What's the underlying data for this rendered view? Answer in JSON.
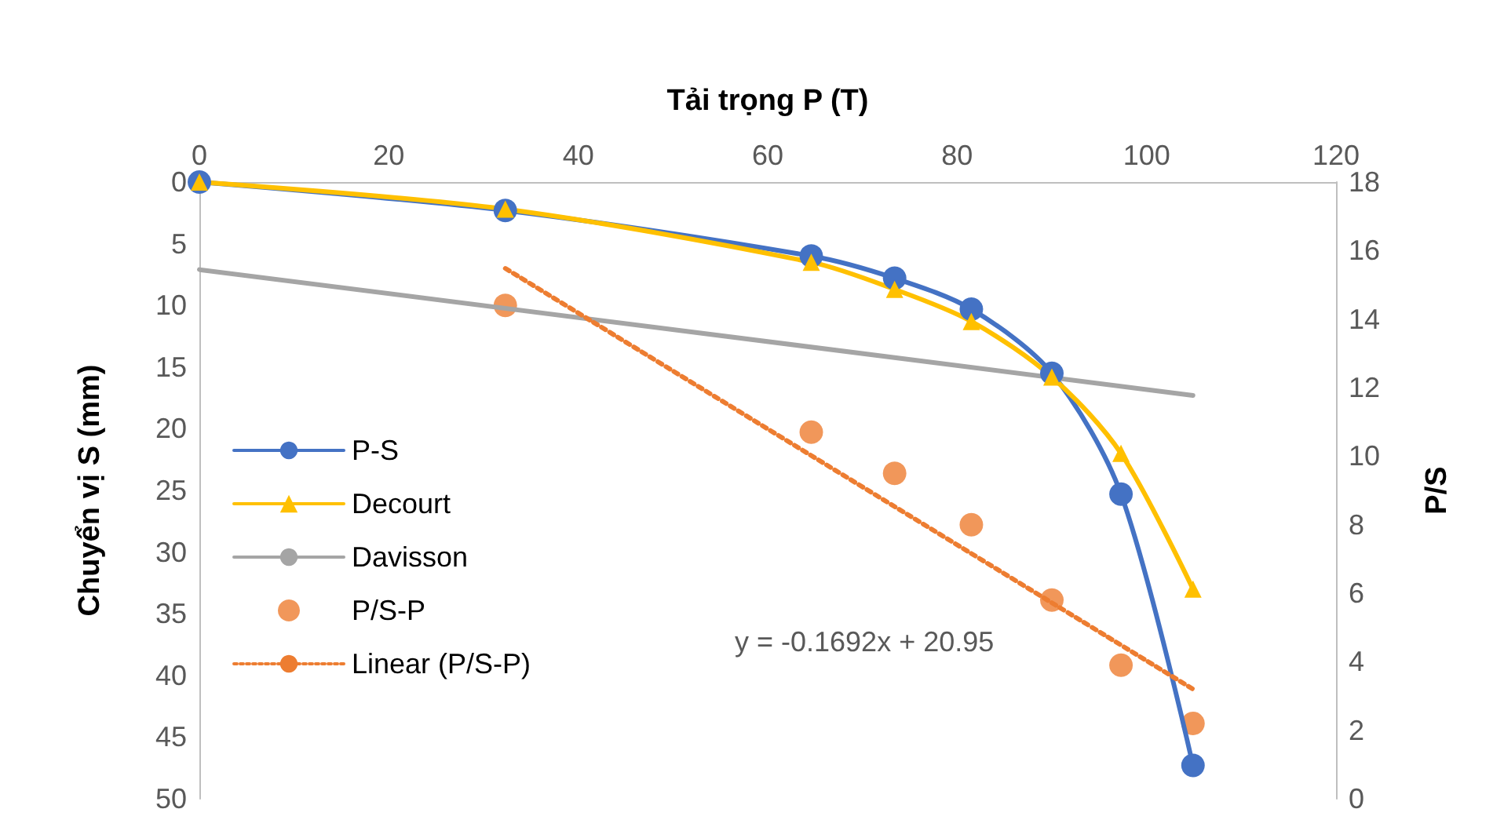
{
  "chart_data": {
    "type": "line",
    "xlabel": "Tải trọng P (T)",
    "ylabel": "Chuyển vị S (mm)",
    "y2label": "P/S",
    "xlim": [
      0,
      120
    ],
    "xticks": [
      0,
      20,
      40,
      60,
      80,
      100,
      120
    ],
    "ylim": [
      50,
      0
    ],
    "yticks": [
      0,
      5,
      10,
      15,
      20,
      25,
      30,
      35,
      40,
      45,
      50
    ],
    "y2lim": [
      0,
      18
    ],
    "y2ticks": [
      0,
      2,
      4,
      6,
      8,
      10,
      12,
      14,
      16,
      18
    ],
    "series": [
      {
        "name": "P-S",
        "color": "#4472c4",
        "marker": "circle",
        "x": [
          0,
          32.3,
          64.6,
          73.4,
          81.5,
          90,
          97.3,
          104.9
        ],
        "values": [
          0,
          2.3,
          6.0,
          7.8,
          10.3,
          15.5,
          25.3,
          47.3
        ]
      },
      {
        "name": "Decourt",
        "color": "#ffc000",
        "marker": "triangle",
        "x": [
          0,
          32.3,
          64.6,
          73.4,
          81.5,
          90,
          97.3,
          104.9
        ],
        "values": [
          0,
          2.2,
          6.5,
          8.7,
          11.3,
          15.8,
          22,
          33
        ]
      },
      {
        "name": "Davisson",
        "color": "#a5a5a5",
        "marker": "none",
        "x": [
          0,
          104.9
        ],
        "values": [
          7.1,
          17.3
        ]
      },
      {
        "name": "P/S-P",
        "type": "scatter",
        "color": "#ed7d31",
        "marker": "circle",
        "axis": "y2",
        "x": [
          32.3,
          64.6,
          73.4,
          81.5,
          90,
          97.3,
          104.9
        ],
        "values": [
          14.4,
          10.7,
          9.5,
          8.0,
          5.8,
          3.9,
          2.2
        ]
      },
      {
        "name": "Linear (P/S-P)",
        "color": "#ed7d31",
        "marker": "none",
        "line_style": "dotted",
        "axis": "y2",
        "x": [
          32.3,
          104.9
        ],
        "values": [
          15.48,
          3.2
        ]
      }
    ],
    "annotations": [
      "y = -0.1692x + 20.95"
    ],
    "legend": "left",
    "grid": false
  }
}
